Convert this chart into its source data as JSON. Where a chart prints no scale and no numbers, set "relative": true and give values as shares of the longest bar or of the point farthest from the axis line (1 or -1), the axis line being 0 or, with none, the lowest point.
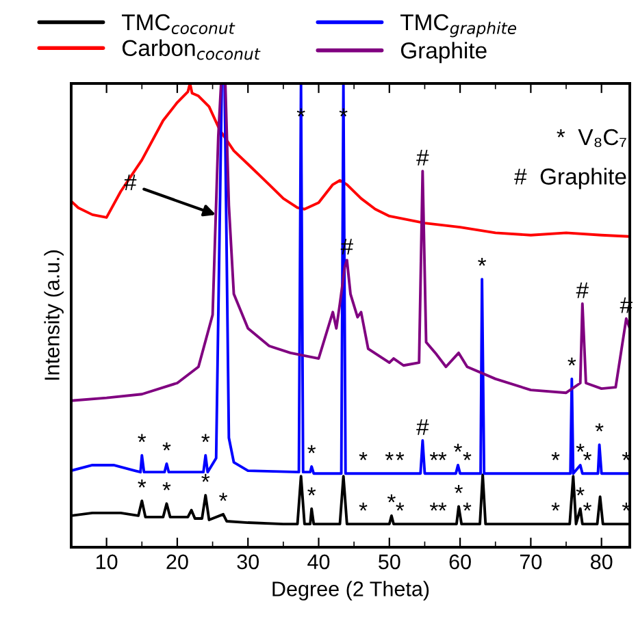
{
  "chart_data": {
    "type": "line",
    "relative": true,
    "xlabel": "Degree (2 Theta)",
    "ylabel": "Intensity (a.u.)",
    "xlim": [
      5,
      84
    ],
    "xticks": [
      10,
      20,
      30,
      40,
      50,
      60,
      70,
      80
    ],
    "tick_labels": "x",
    "legend": "top",
    "grid": false,
    "line_style": "solid",
    "marker": "none",
    "series": [
      {
        "name": "TMC$_{coconut}$",
        "color": "#000000",
        "x": [
          5,
          8,
          12,
          14.5,
          15,
          15.5,
          18,
          18.5,
          19,
          21.5,
          22,
          22.5,
          23.5,
          24,
          24.5,
          26.5,
          27,
          30,
          35,
          37,
          37.5,
          38,
          38.8,
          39,
          39.3,
          43,
          43.5,
          44,
          50,
          50.3,
          50.6,
          59.5,
          59.8,
          60.2,
          62.8,
          63.2,
          63.6,
          75.5,
          76,
          76.4,
          77,
          77.3,
          79.4,
          79.8,
          80.2,
          84
        ],
        "values": [
          0.068,
          0.074,
          0.074,
          0.068,
          0.1,
          0.065,
          0.065,
          0.094,
          0.065,
          0.065,
          0.08,
          0.062,
          0.062,
          0.112,
          0.059,
          0.071,
          0.056,
          0.053,
          0.05,
          0.05,
          0.153,
          0.05,
          0.05,
          0.083,
          0.05,
          0.05,
          0.153,
          0.05,
          0.05,
          0.068,
          0.05,
          0.05,
          0.088,
          0.05,
          0.05,
          0.156,
          0.05,
          0.05,
          0.153,
          0.05,
          0.083,
          0.05,
          0.05,
          0.109,
          0.05,
          0.05
        ]
      },
      {
        "name": "Carbon$_{coconut}$",
        "color": "#ff0000",
        "x": [
          5,
          6,
          8,
          10,
          12,
          15,
          18,
          20,
          21.5,
          21.8,
          22.1,
          23,
          24.5,
          26,
          28,
          30,
          33,
          35,
          37,
          38,
          40,
          42,
          43,
          44,
          46,
          48,
          50,
          55,
          60,
          65,
          70,
          75,
          80,
          84
        ],
        "values": [
          0.746,
          0.732,
          0.717,
          0.711,
          0.767,
          0.835,
          0.92,
          0.959,
          0.982,
          1,
          0.979,
          0.973,
          0.95,
          0.9,
          0.855,
          0.826,
          0.782,
          0.752,
          0.732,
          0.729,
          0.743,
          0.782,
          0.791,
          0.782,
          0.752,
          0.729,
          0.714,
          0.699,
          0.69,
          0.678,
          0.673,
          0.678,
          0.673,
          0.67
        ]
      },
      {
        "name": "TMC$_{graphite}$",
        "color": "#0000ff",
        "x": [
          5,
          8,
          11,
          14,
          14.8,
          15,
          15.3,
          18.2,
          18.5,
          18.8,
          23.7,
          24,
          24.3,
          25.5,
          26.3,
          26.7,
          27.3,
          28,
          30,
          37.2,
          37.5,
          37.8,
          38.8,
          39,
          39.3,
          43.2,
          43.5,
          43.8,
          54.4,
          54.7,
          55,
          59.4,
          59.7,
          60,
          62.9,
          63.1,
          63.4,
          75.6,
          75.8,
          76,
          77,
          77.3,
          79.5,
          79.7,
          80,
          84
        ],
        "values": [
          0.165,
          0.177,
          0.177,
          0.165,
          0.162,
          0.198,
          0.162,
          0.162,
          0.18,
          0.162,
          0.162,
          0.198,
          0.162,
          0.192,
          1,
          1,
          0.236,
          0.183,
          0.165,
          0.162,
          1,
          0.162,
          0.162,
          0.174,
          0.159,
          0.159,
          1,
          0.159,
          0.159,
          0.23,
          0.159,
          0.159,
          0.177,
          0.159,
          0.159,
          0.578,
          0.159,
          0.159,
          0.363,
          0.159,
          0.177,
          0.159,
          0.159,
          0.221,
          0.159,
          0.159
        ]
      },
      {
        "name": "Graphite",
        "color": "#800080",
        "x": [
          5,
          10,
          15,
          20,
          23,
          25,
          25.8,
          26.2,
          26.8,
          27.3,
          28,
          30,
          33,
          36,
          40,
          42,
          42.5,
          43,
          43.7,
          44,
          44.5,
          45.5,
          46,
          47,
          50,
          50.6,
          52,
          54.2,
          54.7,
          55.2,
          56.5,
          58,
          59.8,
          61,
          65,
          70,
          75,
          77,
          77.3,
          77.8,
          80,
          82,
          83.5,
          84
        ],
        "values": [
          0.316,
          0.322,
          0.33,
          0.354,
          0.389,
          0.501,
          0.885,
          1,
          1,
          0.737,
          0.546,
          0.472,
          0.434,
          0.419,
          0.407,
          0.507,
          0.472,
          0.525,
          0.605,
          0.619,
          0.546,
          0.496,
          0.507,
          0.428,
          0.398,
          0.407,
          0.392,
          0.398,
          0.811,
          0.442,
          0.419,
          0.389,
          0.419,
          0.389,
          0.363,
          0.339,
          0.333,
          0.354,
          0.525,
          0.354,
          0.342,
          0.345,
          0.493,
          0.472
        ]
      }
    ],
    "annotations": [
      "*  V₈C₇",
      "#  Graphite",
      {
        "text": "#",
        "x": 25.45,
        "y": 0.717
      },
      {
        "text": "*",
        "x": 37.5,
        "y": 0.9
      },
      {
        "text": "*",
        "x": 43.5,
        "y": 0.9
      },
      {
        "text": "#",
        "x": 44,
        "y": 0.619
      },
      {
        "text": "#",
        "x": 54.7,
        "y": 0.811
      },
      {
        "text": "#",
        "x": 77.3,
        "y": 0.525
      },
      {
        "text": "#",
        "x": 83.5,
        "y": 0.493
      },
      {
        "text": "*",
        "x": 63.1,
        "y": 0.578
      },
      {
        "text": "*",
        "x": 75.8,
        "y": 0.363
      },
      {
        "text": "*",
        "x": 15,
        "y": 0.198
      },
      {
        "text": "*",
        "x": 18.5,
        "y": 0.18
      },
      {
        "text": "*",
        "x": 24,
        "y": 0.198
      },
      {
        "text": "*",
        "x": 39,
        "y": 0.174
      },
      {
        "text": "*",
        "x": 46.3,
        "y": 0.159
      },
      {
        "text": "*",
        "x": 50,
        "y": 0.159
      },
      {
        "text": "*",
        "x": 51.5,
        "y": 0.159
      },
      {
        "text": "#",
        "x": 54.7,
        "y": 0.23
      },
      {
        "text": "*",
        "x": 56.3,
        "y": 0.159
      },
      {
        "text": "*",
        "x": 57.5,
        "y": 0.159
      },
      {
        "text": "*",
        "x": 59.7,
        "y": 0.177
      },
      {
        "text": "*",
        "x": 61,
        "y": 0.159
      },
      {
        "text": "*",
        "x": 73.5,
        "y": 0.159
      },
      {
        "text": "*",
        "x": 77,
        "y": 0.177
      },
      {
        "text": "*",
        "x": 78,
        "y": 0.159
      },
      {
        "text": "*",
        "x": 79.7,
        "y": 0.221
      },
      {
        "text": "*",
        "x": 83.5,
        "y": 0.159
      },
      {
        "text": "*",
        "x": 15,
        "y": 0.1
      },
      {
        "text": "*",
        "x": 18.5,
        "y": 0.094
      },
      {
        "text": "*",
        "x": 24,
        "y": 0.112
      },
      {
        "text": "*",
        "x": 26.5,
        "y": 0.071
      },
      {
        "text": "*",
        "x": 39,
        "y": 0.083
      },
      {
        "text": "*",
        "x": 46.3,
        "y": 0.05
      },
      {
        "text": "*",
        "x": 50.3,
        "y": 0.068
      },
      {
        "text": "*",
        "x": 51.5,
        "y": 0.05
      },
      {
        "text": "*",
        "x": 56.3,
        "y": 0.05
      },
      {
        "text": "*",
        "x": 57.5,
        "y": 0.05
      },
      {
        "text": "*",
        "x": 59.8,
        "y": 0.088
      },
      {
        "text": "*",
        "x": 61,
        "y": 0.05
      },
      {
        "text": "*",
        "x": 73.5,
        "y": 0.05
      },
      {
        "text": "*",
        "x": 77,
        "y": 0.083
      },
      {
        "text": "*",
        "x": 78,
        "y": 0.05
      },
      {
        "text": "*",
        "x": 83.5,
        "y": 0.05
      }
    ]
  }
}
